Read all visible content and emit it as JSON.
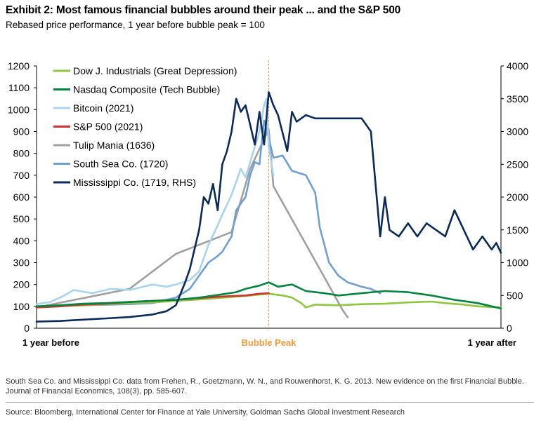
{
  "title": "Exhibit 2: Most famous financial bubbles around their peak ... and the S&P 500",
  "subtitle": "Rebased price performance, 1 year before bubble peak = 100",
  "footnote": "South Sea Co. and Mississippi Co. data from Frehen, R., Goetzmann, W. N., and Rouwenhorst, K. G. 2013. New evidence on the first Financial Bubble. Journal of Financial Economics, 108(3), pp. 585-607.",
  "source": "Source: Bloomberg, International Center for Finance at Yale University, Goldman Sachs Global Investment Research",
  "chart_data": {
    "type": "line",
    "x_labels": {
      "start": "1 year before",
      "peak": "Bubble Peak",
      "end": "1 year after"
    },
    "x_range": [
      0,
      100
    ],
    "peak_x": 50,
    "left_axis": {
      "range": [
        0,
        1200
      ],
      "ticks": [
        0,
        100,
        200,
        300,
        400,
        500,
        600,
        700,
        800,
        900,
        1000,
        1100,
        1200
      ]
    },
    "right_axis": {
      "range": [
        0,
        4000
      ],
      "ticks": [
        0,
        500,
        1000,
        1500,
        2000,
        2500,
        3000,
        3500,
        4000
      ]
    },
    "legend_position": "top-left",
    "peak_line_color": "#f39a3c",
    "series": [
      {
        "name": "Dow J. Industrials (Great Depression)",
        "color": "#8dc63f",
        "axis": "left",
        "points": [
          [
            0,
            100
          ],
          [
            5,
            102
          ],
          [
            10,
            105
          ],
          [
            15,
            110
          ],
          [
            20,
            115
          ],
          [
            25,
            118
          ],
          [
            30,
            125
          ],
          [
            35,
            132
          ],
          [
            40,
            140
          ],
          [
            45,
            148
          ],
          [
            50,
            158
          ],
          [
            53,
            150
          ],
          [
            55,
            140
          ],
          [
            57,
            115
          ],
          [
            58,
            95
          ],
          [
            60,
            108
          ],
          [
            65,
            105
          ],
          [
            70,
            110
          ],
          [
            75,
            112
          ],
          [
            80,
            118
          ],
          [
            85,
            122
          ],
          [
            88,
            115
          ],
          [
            92,
            108
          ],
          [
            95,
            100
          ],
          [
            100,
            95
          ]
        ]
      },
      {
        "name": "Nasdaq Composite (Tech Bubble)",
        "color": "#00853f",
        "axis": "left",
        "points": [
          [
            0,
            100
          ],
          [
            5,
            105
          ],
          [
            10,
            112
          ],
          [
            15,
            115
          ],
          [
            20,
            120
          ],
          [
            25,
            125
          ],
          [
            30,
            130
          ],
          [
            35,
            140
          ],
          [
            40,
            155
          ],
          [
            43,
            165
          ],
          [
            45,
            180
          ],
          [
            48,
            195
          ],
          [
            50,
            210
          ],
          [
            52,
            190
          ],
          [
            55,
            200
          ],
          [
            58,
            170
          ],
          [
            62,
            160
          ],
          [
            65,
            150
          ],
          [
            70,
            160
          ],
          [
            75,
            170
          ],
          [
            80,
            165
          ],
          [
            85,
            150
          ],
          [
            90,
            130
          ],
          [
            95,
            115
          ],
          [
            100,
            90
          ]
        ]
      },
      {
        "name": "Bitcoin (2021)",
        "color": "#a8d4f0",
        "axis": "left",
        "points": [
          [
            0,
            110
          ],
          [
            3,
            120
          ],
          [
            6,
            150
          ],
          [
            8,
            175
          ],
          [
            12,
            160
          ],
          [
            16,
            180
          ],
          [
            20,
            175
          ],
          [
            25,
            200
          ],
          [
            28,
            190
          ],
          [
            30,
            200
          ],
          [
            33,
            220
          ],
          [
            35,
            260
          ],
          [
            37,
            380
          ],
          [
            39,
            470
          ],
          [
            40,
            520
          ],
          [
            42,
            610
          ],
          [
            44,
            730
          ],
          [
            45,
            690
          ],
          [
            46,
            760
          ],
          [
            48,
            900
          ],
          [
            49,
            1020
          ],
          [
            49.5,
            1050
          ],
          [
            50,
            830
          ],
          [
            51,
            700
          ]
        ]
      },
      {
        "name": "S&P 500 (2021)",
        "color": "#d0342c",
        "axis": "left",
        "points": [
          [
            0,
            95
          ],
          [
            5,
            100
          ],
          [
            10,
            108
          ],
          [
            15,
            112
          ],
          [
            20,
            120
          ],
          [
            25,
            125
          ],
          [
            30,
            130
          ],
          [
            35,
            138
          ],
          [
            40,
            145
          ],
          [
            45,
            150
          ],
          [
            48,
            158
          ],
          [
            50,
            160
          ]
        ]
      },
      {
        "name": "Tulip Mania (1636)",
        "color": "#a0a0a0",
        "axis": "left",
        "points": [
          [
            0,
            95
          ],
          [
            20,
            180
          ],
          [
            30,
            340
          ],
          [
            42,
            440
          ],
          [
            46,
            730
          ],
          [
            50,
            910
          ],
          [
            51,
            650
          ],
          [
            66,
            80
          ],
          [
            67,
            50
          ]
        ]
      },
      {
        "name": "South Sea Co. (1720)",
        "color": "#6f9fd3",
        "axis": "left",
        "points": [
          [
            0,
            100
          ],
          [
            10,
            105
          ],
          [
            20,
            110
          ],
          [
            25,
            115
          ],
          [
            30,
            140
          ],
          [
            33,
            180
          ],
          [
            35,
            240
          ],
          [
            37,
            300
          ],
          [
            39,
            330
          ],
          [
            40,
            350
          ],
          [
            42,
            420
          ],
          [
            43,
            540
          ],
          [
            45,
            600
          ],
          [
            46,
            700
          ],
          [
            47,
            760
          ],
          [
            48,
            750
          ],
          [
            49,
            950
          ],
          [
            50,
            870
          ],
          [
            51,
            780
          ],
          [
            53,
            790
          ],
          [
            55,
            720
          ],
          [
            58,
            700
          ],
          [
            60,
            620
          ],
          [
            61,
            460
          ],
          [
            63,
            300
          ],
          [
            65,
            240
          ],
          [
            67,
            210
          ],
          [
            70,
            190
          ],
          [
            72,
            180
          ],
          [
            74,
            160
          ]
        ]
      },
      {
        "name": "Mississippi Co. (1719, RHS)",
        "color": "#0b2a5a",
        "axis": "right",
        "points": [
          [
            0,
            100
          ],
          [
            5,
            110
          ],
          [
            10,
            130
          ],
          [
            15,
            150
          ],
          [
            20,
            170
          ],
          [
            25,
            210
          ],
          [
            28,
            260
          ],
          [
            30,
            350
          ],
          [
            32,
            700
          ],
          [
            33,
            900
          ],
          [
            35,
            1500
          ],
          [
            36,
            2000
          ],
          [
            37,
            1900
          ],
          [
            38,
            2200
          ],
          [
            39,
            1800
          ],
          [
            40,
            2500
          ],
          [
            41,
            2700
          ],
          [
            42,
            3000
          ],
          [
            43,
            3500
          ],
          [
            44,
            3300
          ],
          [
            45,
            3400
          ],
          [
            46,
            3100
          ],
          [
            47,
            2800
          ],
          [
            48,
            3300
          ],
          [
            49,
            2800
          ],
          [
            50,
            3600
          ],
          [
            51,
            3400
          ],
          [
            52,
            3250
          ],
          [
            54,
            2700
          ],
          [
            55,
            3300
          ],
          [
            56,
            3150
          ],
          [
            58,
            3250
          ],
          [
            60,
            3200
          ],
          [
            62,
            3200
          ],
          [
            65,
            3200
          ],
          [
            70,
            3200
          ],
          [
            72,
            3000
          ],
          [
            73,
            2200
          ],
          [
            74,
            1400
          ],
          [
            75,
            2000
          ],
          [
            76,
            1500
          ],
          [
            78,
            1400
          ],
          [
            80,
            1600
          ],
          [
            82,
            1400
          ],
          [
            84,
            1600
          ],
          [
            86,
            1500
          ],
          [
            88,
            1400
          ],
          [
            90,
            1800
          ],
          [
            92,
            1500
          ],
          [
            94,
            1200
          ],
          [
            96,
            1400
          ],
          [
            98,
            1200
          ],
          [
            99,
            1300
          ],
          [
            100,
            1150
          ]
        ]
      }
    ]
  }
}
